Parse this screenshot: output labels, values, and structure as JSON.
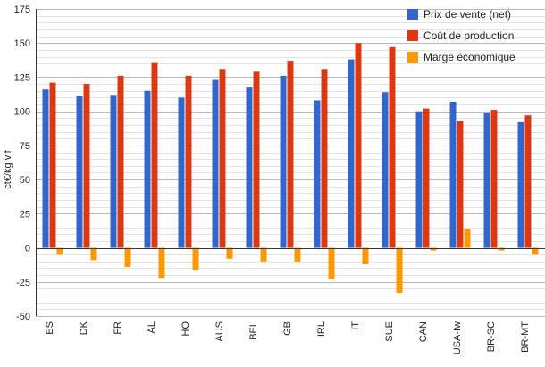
{
  "chart_data": {
    "type": "bar",
    "title": "",
    "xlabel": "",
    "ylabel": "ct€/kg vif",
    "ylim": [
      -50,
      175
    ],
    "yticks": [
      175,
      150,
      125,
      100,
      75,
      50,
      25,
      0,
      -25,
      -50
    ],
    "grid": true,
    "legend_position": "top-right",
    "categories": [
      "ES",
      "DK",
      "FR",
      "AL",
      "HO",
      "AUS",
      "BEL",
      "GB",
      "IRL",
      "IT",
      "SUE",
      "CAN",
      "USA-Iw",
      "BR-SC",
      "BR-MT"
    ],
    "series": [
      {
        "name": "Prix de vente (net)",
        "color": "#3366cc",
        "values": [
          116,
          111,
          112,
          115,
          110,
          123,
          118,
          126,
          108,
          138,
          114,
          100,
          107,
          99,
          92
        ]
      },
      {
        "name": "Coût de production",
        "color": "#dc3912",
        "values": [
          121,
          120,
          126,
          136,
          126,
          131,
          129,
          137,
          131,
          150,
          147,
          102,
          93,
          101,
          97
        ]
      },
      {
        "name": "Marge économique",
        "color": "#ff9900",
        "values": [
          -5,
          -9,
          -14,
          -22,
          -16,
          -8,
          -10,
          -10,
          -23,
          -12,
          -33,
          -2,
          14,
          -2,
          -5
        ]
      }
    ]
  }
}
